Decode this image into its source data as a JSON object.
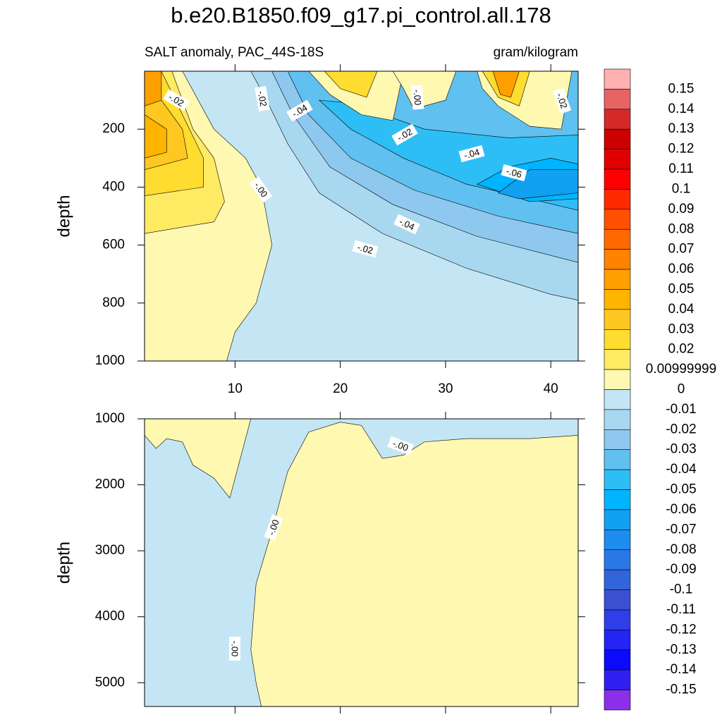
{
  "chart_data": {
    "type": "contour",
    "title": "b.e20.B1850.f09_g17.pi_control.all.178",
    "subtitle": "SALT anomaly, PAC_44S-18S",
    "units": "gram/kilogram",
    "colorbar": {
      "levels": [
        0.15,
        0.14,
        0.13,
        0.12,
        0.11,
        0.1,
        0.09,
        0.08,
        0.07,
        0.06,
        0.05,
        0.04,
        0.03,
        0.02,
        0.00999999,
        0,
        -0.01,
        -0.02,
        -0.03,
        -0.04,
        -0.05,
        -0.06,
        -0.07,
        -0.08,
        -0.09,
        -0.1,
        -0.11,
        -0.12,
        -0.13,
        -0.14,
        -0.15
      ],
      "colors": [
        "#ffb0b0",
        "#e86464",
        "#d42a2a",
        "#cc0000",
        "#e00000",
        "#ff0000",
        "#ff2a00",
        "#ff5000",
        "#ff6a00",
        "#ff8200",
        "#ffa000",
        "#ffb400",
        "#ffc820",
        "#ffdc30",
        "#ffea64",
        "#fff8b0",
        "#c4e6f4",
        "#a8d8f0",
        "#8ec8ee",
        "#60c0f0",
        "#2ebef6",
        "#00b4ff",
        "#12a0f0",
        "#1e8cf0",
        "#2a78e6",
        "#3264dc",
        "#3c50d2",
        "#2e3ee8",
        "#2424f4",
        "#0a0aff",
        "#3020f0",
        "#8a30e8"
      ]
    },
    "panels": [
      {
        "ylabel": "depth",
        "xlim": [
          1.4,
          42.6
        ],
        "ylim": [
          0,
          1000
        ],
        "xticks": [
          10,
          20,
          30,
          40
        ],
        "yticks": [
          200,
          400,
          600,
          800,
          1000
        ],
        "show_xtick_labels": true,
        "background": "#c4e6f4",
        "regions": [
          {
            "color": "#a8d8f0",
            "x": [
              11.5,
              13,
              15,
              18,
              24,
              32,
              40,
              42.6,
              42.6
            ],
            "y": [
              0,
              100,
              250,
              420,
              560,
              680,
              770,
              790,
              0
            ]
          },
          {
            "color": "#8ec8ee",
            "x": [
              13.5,
              15.5,
              19,
              25,
              33,
              42.6,
              42.6
            ],
            "y": [
              0,
              150,
              330,
              460,
              570,
              660,
              0
            ]
          },
          {
            "color": "#60c0f0",
            "x": [
              15,
              17,
              21,
              27,
              35,
              42.6,
              42.6
            ],
            "y": [
              0,
              150,
              300,
              410,
              500,
              560,
              0
            ]
          },
          {
            "color": "#2ebef6",
            "x": [
              18,
              21,
              26,
              32,
              38,
              42.6,
              42.6,
              36,
              28,
              21
            ],
            "y": [
              100,
              200,
              300,
              390,
              440,
              480,
              220,
              230,
              200,
              110
            ]
          },
          {
            "color": "#00b4ff",
            "x": [
              33,
              36,
              40,
              42.6,
              42.6,
              38
            ],
            "y": [
              390,
              330,
              300,
              320,
              440,
              450
            ]
          },
          {
            "color": "#12a0f0",
            "x": [
              35,
              38,
              42.6,
              42.6,
              37
            ],
            "y": [
              420,
              340,
              340,
              420,
              440
            ]
          },
          {
            "color": "#fff8b0",
            "x": [
              1.4,
              5,
              8,
              11,
              12.5,
              13,
              13.5,
              12,
              10,
              9.2,
              1.4
            ],
            "y": [
              0,
              0,
              200,
              300,
              400,
              500,
              600,
              800,
              900,
              1000,
              1000
            ]
          },
          {
            "color": "#ffea64",
            "x": [
              1.4,
              4,
              6,
              8,
              9,
              8,
              1.4
            ],
            "y": [
              0,
              0,
              200,
              300,
              450,
              520,
              560
            ]
          },
          {
            "color": "#ffdc30",
            "x": [
              1.4,
              3,
              5,
              7,
              7,
              1.4
            ],
            "y": [
              0,
              0,
              150,
              300,
              400,
              430
            ]
          },
          {
            "color": "#ffc820",
            "x": [
              1.4,
              3,
              5,
              5.5,
              1.4
            ],
            "y": [
              50,
              100,
              200,
              300,
              340
            ]
          },
          {
            "color": "#ffb400",
            "x": [
              1.4,
              3.5,
              3.5,
              1.4
            ],
            "y": [
              150,
              200,
              280,
              300
            ]
          },
          {
            "color": "#ffa000",
            "x": [
              1.4,
              3,
              3,
              1.4
            ],
            "y": [
              0,
              0,
              100,
              120
            ]
          },
          {
            "color": "#fff8b0",
            "x": [
              17,
              26,
              25,
              22,
              19
            ],
            "y": [
              0,
              0,
              170,
              150,
              80
            ]
          },
          {
            "color": "#ffdc30",
            "x": [
              18.5,
              23.5,
              22.5,
              20
            ],
            "y": [
              0,
              0,
              90,
              60
            ]
          },
          {
            "color": "#fff8b0",
            "x": [
              25,
              31,
              30,
              27,
              26
            ],
            "y": [
              0,
              0,
              100,
              130,
              60
            ]
          },
          {
            "color": "#fff8b0",
            "x": [
              33,
              42,
              41,
              38,
              35,
              33.5
            ],
            "y": [
              0,
              0,
              200,
              190,
              120,
              60
            ]
          },
          {
            "color": "#ffdc30",
            "x": [
              33.5,
              38,
              37,
              35
            ],
            "y": [
              0,
              0,
              120,
              90
            ]
          },
          {
            "color": "#ffa000",
            "x": [
              34.5,
              37,
              36.2,
              35.2
            ],
            "y": [
              0,
              0,
              90,
              80
            ]
          }
        ],
        "contour_labels": [
          "-.02",
          "-.02",
          "-.04",
          "-.02",
          "-.00",
          "-.04",
          "-.06",
          "-.02",
          "-.00",
          "-.04",
          "-.02"
        ]
      },
      {
        "ylabel": "depth",
        "xlim": [
          1.4,
          42.6
        ],
        "ylim": [
          1000,
          5360
        ],
        "xticks": [
          10,
          20,
          30,
          40
        ],
        "yticks": [
          1000,
          2000,
          3000,
          4000,
          5000
        ],
        "show_xtick_labels": false,
        "background": "#fff8b0",
        "regions": [
          {
            "color": "#c4e6f4",
            "x": [
              1.4,
              2.5,
              3.5,
              5,
              6,
              8,
              9.5,
              11.5,
              42.6,
              42.6,
              38,
              32,
              28,
              26,
              24,
              22,
              20,
              17,
              15,
              13.5,
              12,
              11.5,
              12,
              12.5,
              1.4
            ],
            "y": [
              1250,
              1450,
              1300,
              1350,
              1700,
              1900,
              2200,
              1000,
              1000,
              1250,
              1300,
              1300,
              1350,
              1550,
              1600,
              1100,
              1050,
              1200,
              1800,
              2700,
              3500,
              4500,
              5000,
              5360,
              5360
            ]
          }
        ],
        "contour_labels": [
          "-.00",
          "-.00",
          "-.00"
        ]
      }
    ]
  }
}
